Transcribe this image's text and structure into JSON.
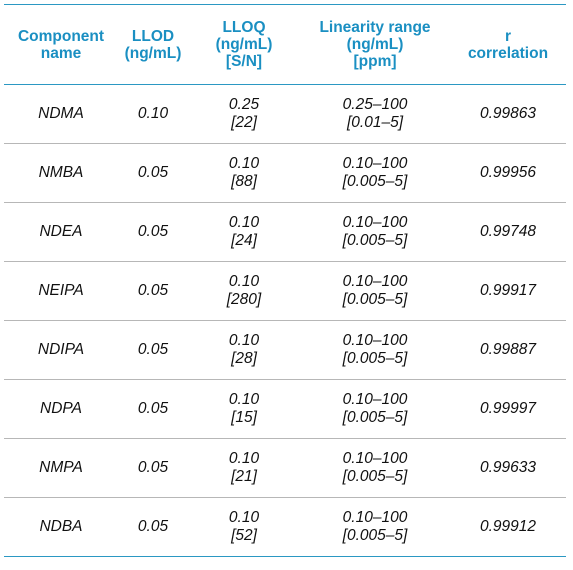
{
  "table": {
    "headers": [
      [
        "Component",
        "name"
      ],
      [
        "LLOD",
        "(ng/mL)"
      ],
      [
        "LLOQ",
        "(ng/mL)",
        "[S/N]"
      ],
      [
        "Linearity range",
        "(ng/mL)",
        "[ppm]"
      ],
      [
        "r",
        "correlation"
      ]
    ],
    "rows": [
      {
        "name": "NDMA",
        "llod": "0.10",
        "lloq": "0.25",
        "sn": "[22]",
        "range": "0.25–100",
        "ppm": "[0.01–5]",
        "r": "0.99863"
      },
      {
        "name": "NMBA",
        "llod": "0.05",
        "lloq": "0.10",
        "sn": "[88]",
        "range": "0.10–100",
        "ppm": "[0.005–5]",
        "r": "0.99956"
      },
      {
        "name": "NDEA",
        "llod": "0.05",
        "lloq": "0.10",
        "sn": "[24]",
        "range": "0.10–100",
        "ppm": "[0.005–5]",
        "r": "0.99748"
      },
      {
        "name": "NEIPA",
        "llod": "0.05",
        "lloq": "0.10",
        "sn": "[280]",
        "range": "0.10–100",
        "ppm": "[0.005–5]",
        "r": "0.99917"
      },
      {
        "name": "NDIPA",
        "llod": "0.05",
        "lloq": "0.10",
        "sn": "[28]",
        "range": "0.10–100",
        "ppm": "[0.005–5]",
        "r": "0.99887"
      },
      {
        "name": "NDPA",
        "llod": "0.05",
        "lloq": "0.10",
        "sn": "[15]",
        "range": "0.10–100",
        "ppm": "[0.005–5]",
        "r": "0.99997"
      },
      {
        "name": "NMPA",
        "llod": "0.05",
        "lloq": "0.10",
        "sn": "[21]",
        "range": "0.10–100",
        "ppm": "[0.005–5]",
        "r": "0.99633"
      },
      {
        "name": "NDBA",
        "llod": "0.05",
        "lloq": "0.10",
        "sn": "[52]",
        "range": "0.10–100",
        "ppm": "[0.005–5]",
        "r": "0.99912"
      }
    ]
  },
  "colors": {
    "header_text": "#1a8fc2",
    "rule_accent": "#2b98c3",
    "rule_row": "#b7b7b7"
  }
}
